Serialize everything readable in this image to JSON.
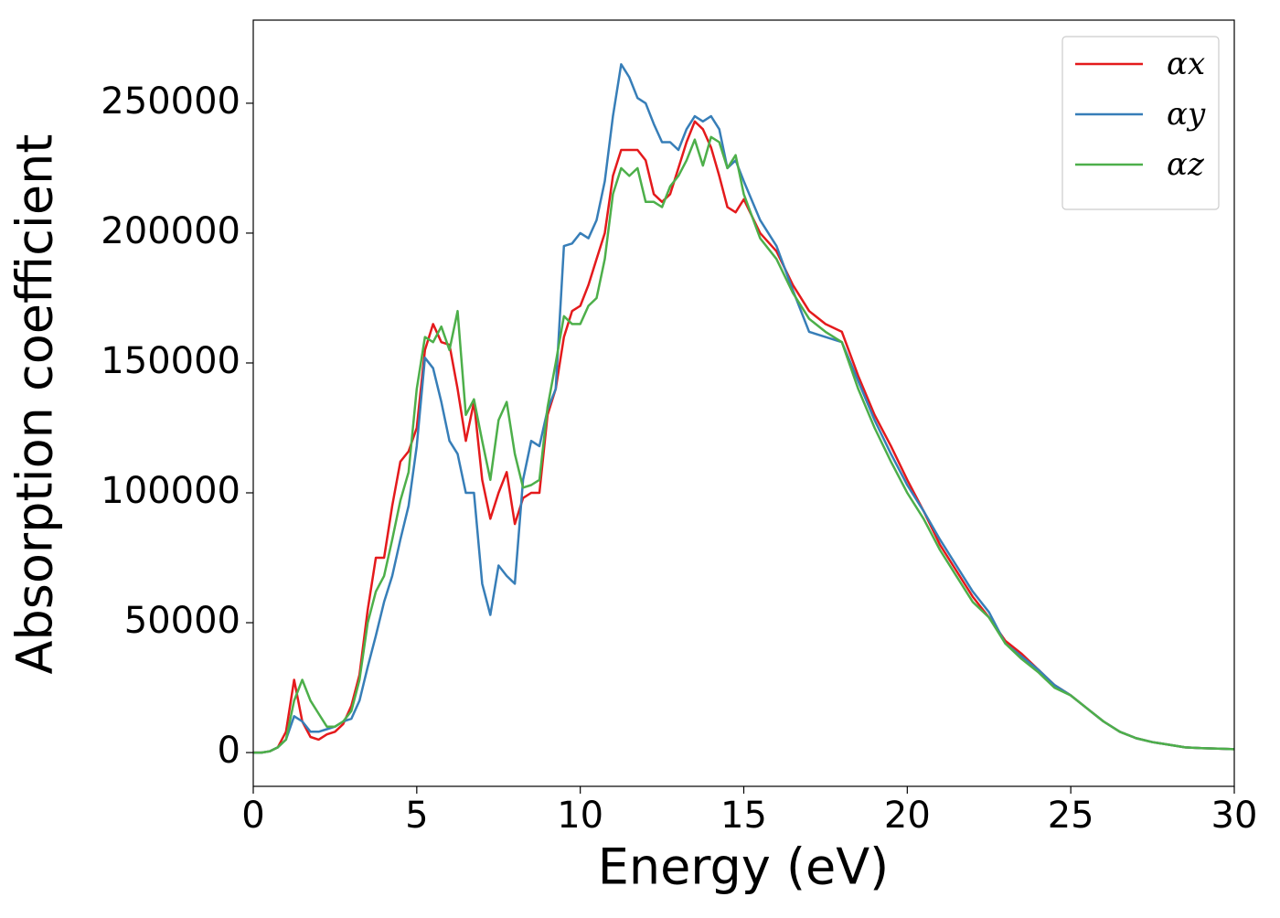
{
  "chart_data": {
    "type": "line",
    "xlabel": "Energy (eV)",
    "ylabel": "Absorption coefficient",
    "x": [
      0,
      0.25,
      0.5,
      0.75,
      1,
      1.25,
      1.5,
      1.75,
      2,
      2.25,
      2.5,
      2.75,
      3,
      3.25,
      3.5,
      3.75,
      4,
      4.25,
      4.5,
      4.75,
      5,
      5.25,
      5.5,
      5.75,
      6,
      6.25,
      6.5,
      6.75,
      7,
      7.25,
      7.5,
      7.75,
      8,
      8.25,
      8.5,
      8.75,
      9,
      9.25,
      9.5,
      9.75,
      10,
      10.25,
      10.5,
      10.75,
      11,
      11.25,
      11.5,
      11.75,
      12,
      12.25,
      12.5,
      12.75,
      13,
      13.25,
      13.5,
      13.75,
      14,
      14.25,
      14.5,
      14.75,
      15,
      15.5,
      16,
      16.5,
      17,
      17.5,
      18,
      18.5,
      19,
      19.5,
      20,
      20.5,
      21,
      21.5,
      22,
      22.5,
      23,
      23.5,
      24,
      24.5,
      25,
      25.5,
      26,
      26.5,
      27,
      27.5,
      28,
      28.5,
      29,
      29.5,
      30
    ],
    "series": [
      {
        "name": "αx",
        "color": "#e41a1c",
        "values": [
          0,
          0,
          500,
          2000,
          8000,
          28000,
          12000,
          6000,
          5000,
          7000,
          8000,
          11000,
          18000,
          30000,
          55000,
          75000,
          75000,
          95000,
          112000,
          116000,
          125000,
          155000,
          165000,
          158000,
          157000,
          140000,
          120000,
          135000,
          105000,
          90000,
          100000,
          108000,
          88000,
          98000,
          100000,
          100000,
          130000,
          140000,
          160000,
          170000,
          172000,
          180000,
          190000,
          200000,
          222000,
          232000,
          232000,
          232000,
          228000,
          215000,
          212000,
          215000,
          225000,
          235000,
          243000,
          240000,
          233000,
          222000,
          210000,
          208000,
          213000,
          200000,
          193000,
          180000,
          170000,
          165000,
          162000,
          145000,
          130000,
          118000,
          105000,
          93000,
          80000,
          70000,
          60000,
          52000,
          43000,
          38000,
          32000,
          26000,
          22000,
          17000,
          12000,
          8000,
          5500,
          4000,
          3000,
          2000,
          1700,
          1500,
          1300
        ]
      },
      {
        "name": "αy",
        "color": "#377eb8",
        "values": [
          0,
          0,
          500,
          2000,
          5000,
          14000,
          12000,
          8000,
          8000,
          9000,
          10000,
          12000,
          13000,
          20000,
          33000,
          45000,
          58000,
          68000,
          82000,
          95000,
          118000,
          152000,
          148000,
          135000,
          120000,
          115000,
          100000,
          100000,
          65000,
          53000,
          72000,
          68000,
          65000,
          105000,
          120000,
          118000,
          132000,
          140000,
          195000,
          196000,
          200000,
          198000,
          205000,
          220000,
          245000,
          265000,
          260000,
          252000,
          250000,
          242000,
          235000,
          235000,
          232000,
          240000,
          245000,
          243000,
          245000,
          240000,
          225000,
          228000,
          220000,
          205000,
          195000,
          178000,
          162000,
          160000,
          158000,
          143000,
          128000,
          115000,
          103000,
          93000,
          82000,
          72000,
          62000,
          54000,
          42000,
          37000,
          32000,
          26000,
          22000,
          17000,
          12000,
          8000,
          5500,
          4000,
          3000,
          2000,
          1700,
          1500,
          1300
        ]
      },
      {
        "name": "αz",
        "color": "#4daf4a",
        "values": [
          0,
          0,
          500,
          2000,
          5000,
          20000,
          28000,
          20000,
          15000,
          10000,
          10000,
          12000,
          16000,
          28000,
          50000,
          62000,
          68000,
          82000,
          97000,
          108000,
          140000,
          160000,
          158000,
          164000,
          155000,
          170000,
          130000,
          136000,
          120000,
          105000,
          128000,
          135000,
          115000,
          102000,
          103000,
          105000,
          133000,
          150000,
          168000,
          165000,
          165000,
          172000,
          175000,
          190000,
          215000,
          225000,
          222000,
          225000,
          212000,
          212000,
          210000,
          218000,
          222000,
          228000,
          236000,
          226000,
          237000,
          235000,
          225000,
          230000,
          215000,
          198000,
          190000,
          177000,
          167000,
          162000,
          158000,
          140000,
          125000,
          112000,
          100000,
          90000,
          78000,
          68000,
          58000,
          52000,
          42000,
          36000,
          31000,
          25000,
          22000,
          17000,
          12000,
          8000,
          5500,
          4000,
          3000,
          2000,
          1700,
          1500,
          1300
        ]
      }
    ],
    "xlim": [
      0,
      30
    ],
    "xticks": [
      0,
      5,
      10,
      15,
      20,
      25,
      30
    ],
    "ylim": [
      -13000,
      282000
    ],
    "yticks": [
      0,
      50000,
      100000,
      150000,
      200000,
      250000
    ],
    "legend": "upper right"
  }
}
